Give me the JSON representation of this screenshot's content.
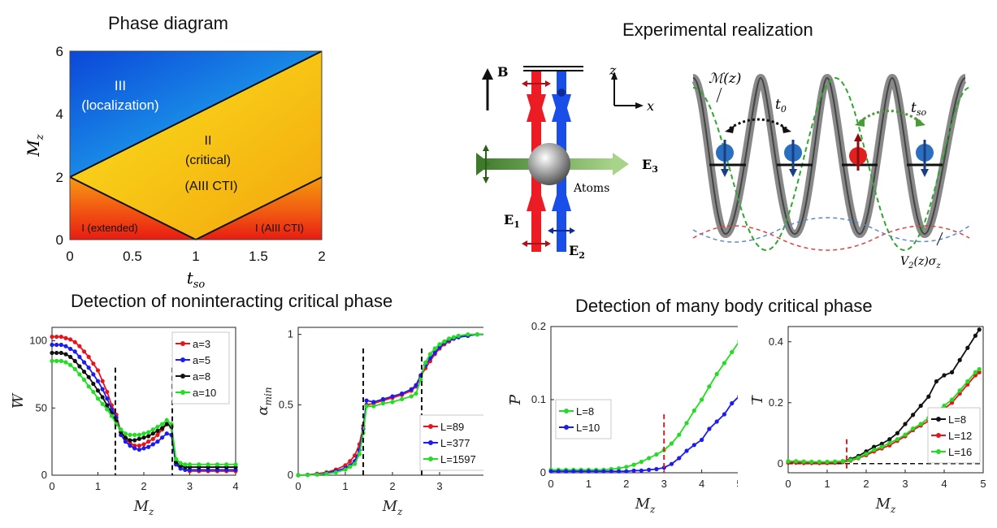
{
  "titles": {
    "phase": "Phase diagram",
    "experiment": "Experimental realization",
    "nonint": "Detection of noninteracting critical phase",
    "manybody": "Detection of many body critical phase"
  },
  "phase_diagram": {
    "xlabel": "t",
    "xlabel_sub": "so",
    "ylabel": "M",
    "ylabel_sub": "z",
    "xticks": [
      "0",
      "0.5",
      "1",
      "1.5",
      "2"
    ],
    "yticks": [
      "0",
      "2",
      "4",
      "6"
    ],
    "region3_line1": "III",
    "region3_line2": "(localization)",
    "region2_line1": "II",
    "region2_line2": "(critical)",
    "region2_line3": "(AIII CTI)",
    "region1a": "I (extended)",
    "region1b": "I (AIII CTI)",
    "colors": {
      "blue": "#1a4fd6",
      "yellow": "#f7c515",
      "red": "#e81c12",
      "orange": "#f59a0c"
    }
  },
  "experiment": {
    "B": "B",
    "z": "z",
    "x": "x",
    "E1": "E",
    "E1_sub": "1",
    "E2": "E",
    "E2_sub": "2",
    "E3": "E",
    "E3_sub": "3",
    "atoms": "Atoms",
    "Mz": "ℳ(z)",
    "t0": "t",
    "t0_sub": "0",
    "tso": "t",
    "tso_sub": "so",
    "V2": "V",
    "V2_sub": "2",
    "V2_rest": "(z)σ",
    "V2_sub2": "z"
  },
  "chart_data": [
    {
      "type": "line",
      "id": "W_vs_Mz",
      "xlabel": "M",
      "xlabel_sub": "z",
      "ylabel": "W",
      "xlim": [
        0,
        4
      ],
      "ylim": [
        0,
        110
      ],
      "xticks": [
        0,
        1,
        2,
        3,
        4
      ],
      "yticks": [
        0,
        50,
        100
      ],
      "vlines": [
        1.38,
        2.62
      ],
      "series": [
        {
          "name": "a=3",
          "color": "#e8141c",
          "x": [
            0,
            0.1,
            0.2,
            0.3,
            0.4,
            0.5,
            0.6,
            0.7,
            0.8,
            0.9,
            1.0,
            1.1,
            1.2,
            1.3,
            1.4,
            1.5,
            1.6,
            1.7,
            1.8,
            1.9,
            2.0,
            2.1,
            2.2,
            2.3,
            2.4,
            2.5,
            2.6,
            2.7,
            2.8,
            2.9,
            3.0,
            3.2,
            3.4,
            3.6,
            3.8,
            4.0
          ],
          "y": [
            103,
            103,
            103,
            102,
            101,
            99,
            96,
            92,
            88,
            83,
            78,
            70,
            62,
            52,
            45,
            32,
            27,
            24,
            22,
            22,
            23,
            25,
            27,
            30,
            34,
            38,
            37,
            9,
            5,
            4,
            3,
            3,
            3,
            3,
            3,
            3
          ]
        },
        {
          "name": "a=5",
          "color": "#1c1cf0",
          "x": [
            0,
            0.1,
            0.2,
            0.3,
            0.4,
            0.5,
            0.6,
            0.7,
            0.8,
            0.9,
            1.0,
            1.1,
            1.2,
            1.3,
            1.4,
            1.5,
            1.6,
            1.7,
            1.8,
            1.9,
            2.0,
            2.1,
            2.2,
            2.3,
            2.4,
            2.5,
            2.6,
            2.7,
            2.8,
            2.9,
            3.0,
            3.2,
            3.4,
            3.6,
            3.8,
            4.0
          ],
          "y": [
            97,
            97,
            97,
            96,
            94,
            92,
            88,
            84,
            80,
            75,
            70,
            64,
            57,
            49,
            43,
            30,
            25,
            22,
            20,
            19,
            20,
            21,
            23,
            25,
            28,
            31,
            30,
            8,
            5,
            4,
            4,
            4,
            4,
            4,
            4,
            4
          ]
        },
        {
          "name": "a=8",
          "color": "#111111",
          "x": [
            0,
            0.1,
            0.2,
            0.3,
            0.4,
            0.5,
            0.6,
            0.7,
            0.8,
            0.9,
            1.0,
            1.1,
            1.2,
            1.3,
            1.4,
            1.5,
            1.6,
            1.7,
            1.8,
            1.9,
            2.0,
            2.1,
            2.2,
            2.3,
            2.4,
            2.5,
            2.6,
            2.7,
            2.8,
            2.9,
            3.0,
            3.2,
            3.4,
            3.6,
            3.8,
            4.0
          ],
          "y": [
            91,
            91,
            91,
            90,
            88,
            85,
            81,
            77,
            73,
            68,
            63,
            58,
            52,
            46,
            40,
            32,
            28,
            26,
            26,
            27,
            28,
            29,
            31,
            33,
            35,
            38,
            36,
            10,
            7,
            6,
            6,
            6,
            6,
            6,
            6,
            6
          ]
        },
        {
          "name": "a=10",
          "color": "#22dd22",
          "x": [
            0,
            0.1,
            0.2,
            0.3,
            0.4,
            0.5,
            0.6,
            0.7,
            0.8,
            0.9,
            1.0,
            1.1,
            1.2,
            1.3,
            1.4,
            1.5,
            1.6,
            1.7,
            1.8,
            1.9,
            2.0,
            2.1,
            2.2,
            2.3,
            2.4,
            2.5,
            2.6,
            2.7,
            2.8,
            2.9,
            3.0,
            3.2,
            3.4,
            3.6,
            3.8,
            4.0
          ],
          "y": [
            85,
            85,
            85,
            84,
            82,
            79,
            75,
            71,
            66,
            62,
            57,
            53,
            49,
            44,
            38,
            34,
            31,
            30,
            30,
            30,
            31,
            32,
            34,
            36,
            38,
            41,
            38,
            12,
            9,
            8,
            8,
            8,
            8,
            8,
            8,
            8
          ]
        }
      ]
    },
    {
      "type": "line",
      "id": "alpha_min_vs_Mz",
      "xlabel": "M",
      "xlabel_sub": "z",
      "ylabel": "α",
      "ylabel_sub": "min",
      "xlim": [
        0,
        4
      ],
      "ylim": [
        0,
        1.05
      ],
      "xticks": [
        0,
        1,
        2,
        3,
        4
      ],
      "yticks": [
        0,
        0.5,
        1
      ],
      "vlines": [
        1.38,
        2.62
      ],
      "series": [
        {
          "name": "L=89",
          "color": "#e8141c",
          "x": [
            0,
            0.2,
            0.4,
            0.6,
            0.8,
            1.0,
            1.1,
            1.2,
            1.3,
            1.38,
            1.45,
            1.6,
            1.8,
            2.0,
            2.2,
            2.4,
            2.5,
            2.6,
            2.7,
            2.8,
            2.9,
            3.0,
            3.1,
            3.2,
            3.3,
            3.4,
            3.6,
            3.8,
            4.0
          ],
          "y": [
            0,
            0.003,
            0.01,
            0.02,
            0.04,
            0.07,
            0.1,
            0.14,
            0.22,
            0.35,
            0.5,
            0.51,
            0.53,
            0.55,
            0.57,
            0.6,
            0.63,
            0.7,
            0.76,
            0.81,
            0.86,
            0.9,
            0.93,
            0.95,
            0.97,
            0.98,
            0.99,
            1.0,
            1.0
          ]
        },
        {
          "name": "L=377",
          "color": "#1c1cf0",
          "x": [
            0,
            0.2,
            0.4,
            0.6,
            0.8,
            1.0,
            1.1,
            1.2,
            1.3,
            1.38,
            1.45,
            1.6,
            1.8,
            2.0,
            2.2,
            2.4,
            2.5,
            2.6,
            2.7,
            2.8,
            2.9,
            3.0,
            3.1,
            3.2,
            3.3,
            3.4,
            3.6,
            3.8,
            4.0
          ],
          "y": [
            0,
            0.002,
            0.006,
            0.015,
            0.03,
            0.05,
            0.07,
            0.1,
            0.18,
            0.33,
            0.53,
            0.52,
            0.54,
            0.56,
            0.58,
            0.61,
            0.64,
            0.71,
            0.78,
            0.83,
            0.87,
            0.91,
            0.94,
            0.96,
            0.97,
            0.98,
            0.99,
            1.0,
            1.0
          ]
        },
        {
          "name": "L=1597",
          "color": "#22dd22",
          "x": [
            0,
            0.2,
            0.4,
            0.6,
            0.8,
            1.0,
            1.1,
            1.2,
            1.3,
            1.38,
            1.45,
            1.6,
            1.8,
            2.0,
            2.2,
            2.4,
            2.5,
            2.6,
            2.7,
            2.8,
            2.9,
            3.0,
            3.1,
            3.2,
            3.3,
            3.4,
            3.6,
            3.8,
            4.0
          ],
          "y": [
            0,
            0.001,
            0.004,
            0.01,
            0.02,
            0.04,
            0.06,
            0.08,
            0.15,
            0.3,
            0.49,
            0.49,
            0.51,
            0.52,
            0.54,
            0.56,
            0.58,
            0.68,
            0.8,
            0.86,
            0.9,
            0.93,
            0.95,
            0.97,
            0.98,
            0.99,
            1.0,
            1.0,
            1.0
          ]
        }
      ]
    },
    {
      "type": "line",
      "id": "P_vs_Mz",
      "xlabel": "M",
      "xlabel_sub": "z",
      "ylabel": "P",
      "xlim": [
        0,
        5
      ],
      "ylim": [
        0,
        0.2
      ],
      "xticks": [
        0,
        1,
        2,
        3,
        4,
        5
      ],
      "yticks": [
        0,
        0.1,
        0.2
      ],
      "vlines": [
        3.0
      ],
      "series": [
        {
          "name": "L=8",
          "color": "#22dd22",
          "x": [
            0,
            0.2,
            0.4,
            0.6,
            0.8,
            1.0,
            1.2,
            1.4,
            1.6,
            1.8,
            2.0,
            2.2,
            2.4,
            2.6,
            2.8,
            3.0,
            3.2,
            3.4,
            3.6,
            3.8,
            4.0,
            4.2,
            4.4,
            4.6,
            4.8,
            5.0
          ],
          "y": [
            0.004,
            0.004,
            0.004,
            0.004,
            0.004,
            0.004,
            0.004,
            0.004,
            0.005,
            0.006,
            0.008,
            0.011,
            0.015,
            0.02,
            0.025,
            0.031,
            0.04,
            0.052,
            0.068,
            0.085,
            0.1,
            0.118,
            0.135,
            0.15,
            0.165,
            0.18
          ]
        },
        {
          "name": "L=10",
          "color": "#1c1cf0",
          "x": [
            0,
            0.2,
            0.4,
            0.6,
            0.8,
            1.0,
            1.2,
            1.4,
            1.6,
            1.8,
            2.0,
            2.2,
            2.4,
            2.6,
            2.8,
            3.0,
            3.2,
            3.4,
            3.6,
            3.8,
            4.0,
            4.2,
            4.4,
            4.6,
            4.8,
            5.0
          ],
          "y": [
            0.002,
            0.002,
            0.002,
            0.002,
            0.002,
            0.002,
            0.002,
            0.002,
            0.002,
            0.002,
            0.002,
            0.003,
            0.003,
            0.004,
            0.005,
            0.007,
            0.012,
            0.02,
            0.03,
            0.038,
            0.045,
            0.06,
            0.07,
            0.08,
            0.095,
            0.105
          ]
        }
      ]
    },
    {
      "type": "line",
      "id": "I_vs_Mz",
      "xlabel": "M",
      "xlabel_sub": "z",
      "ylabel": "I",
      "xlim": [
        0,
        5
      ],
      "ylim": [
        -0.03,
        0.45
      ],
      "xticks": [
        0,
        1,
        2,
        3,
        4,
        5
      ],
      "yticks": [
        0,
        0.2,
        0.4
      ],
      "vlines": [
        1.5
      ],
      "hline": 0,
      "series": [
        {
          "name": "L=8",
          "color": "#111111",
          "x": [
            0,
            0.2,
            0.4,
            0.6,
            0.8,
            1.0,
            1.2,
            1.4,
            1.6,
            1.8,
            2.0,
            2.2,
            2.4,
            2.6,
            2.8,
            3.0,
            3.2,
            3.4,
            3.6,
            3.8,
            4.0,
            4.2,
            4.4,
            4.6,
            4.8,
            4.9
          ],
          "y": [
            0.005,
            0.005,
            0.004,
            0.003,
            0.003,
            0.004,
            0.005,
            0.008,
            0.015,
            0.025,
            0.04,
            0.055,
            0.065,
            0.08,
            0.1,
            0.13,
            0.16,
            0.19,
            0.22,
            0.27,
            0.29,
            0.3,
            0.34,
            0.38,
            0.42,
            0.44
          ]
        },
        {
          "name": "L=12",
          "color": "#e8141c",
          "x": [
            0,
            0.2,
            0.4,
            0.6,
            0.8,
            1.0,
            1.2,
            1.4,
            1.6,
            1.8,
            2.0,
            2.2,
            2.4,
            2.6,
            2.8,
            3.0,
            3.2,
            3.4,
            3.6,
            3.8,
            4.0,
            4.2,
            4.4,
            4.6,
            4.8,
            4.9
          ],
          "y": [
            0.003,
            0.003,
            0.002,
            0.002,
            0.002,
            0.002,
            0.003,
            0.005,
            0.01,
            0.018,
            0.028,
            0.04,
            0.05,
            0.06,
            0.075,
            0.09,
            0.11,
            0.125,
            0.14,
            0.16,
            0.18,
            0.2,
            0.23,
            0.26,
            0.29,
            0.3
          ]
        },
        {
          "name": "L=16",
          "color": "#22dd22",
          "x": [
            0,
            0.2,
            0.4,
            0.6,
            0.8,
            1.0,
            1.2,
            1.4,
            1.6,
            1.8,
            2.0,
            2.2,
            2.4,
            2.6,
            2.8,
            3.0,
            3.2,
            3.4,
            3.6,
            3.8,
            4.0,
            4.2,
            4.4,
            4.6,
            4.8,
            4.9
          ],
          "y": [
            0.008,
            0.008,
            0.007,
            0.006,
            0.006,
            0.006,
            0.007,
            0.008,
            0.012,
            0.02,
            0.032,
            0.045,
            0.055,
            0.068,
            0.08,
            0.095,
            0.115,
            0.13,
            0.15,
            0.17,
            0.19,
            0.21,
            0.24,
            0.27,
            0.3,
            0.31
          ]
        }
      ]
    }
  ]
}
